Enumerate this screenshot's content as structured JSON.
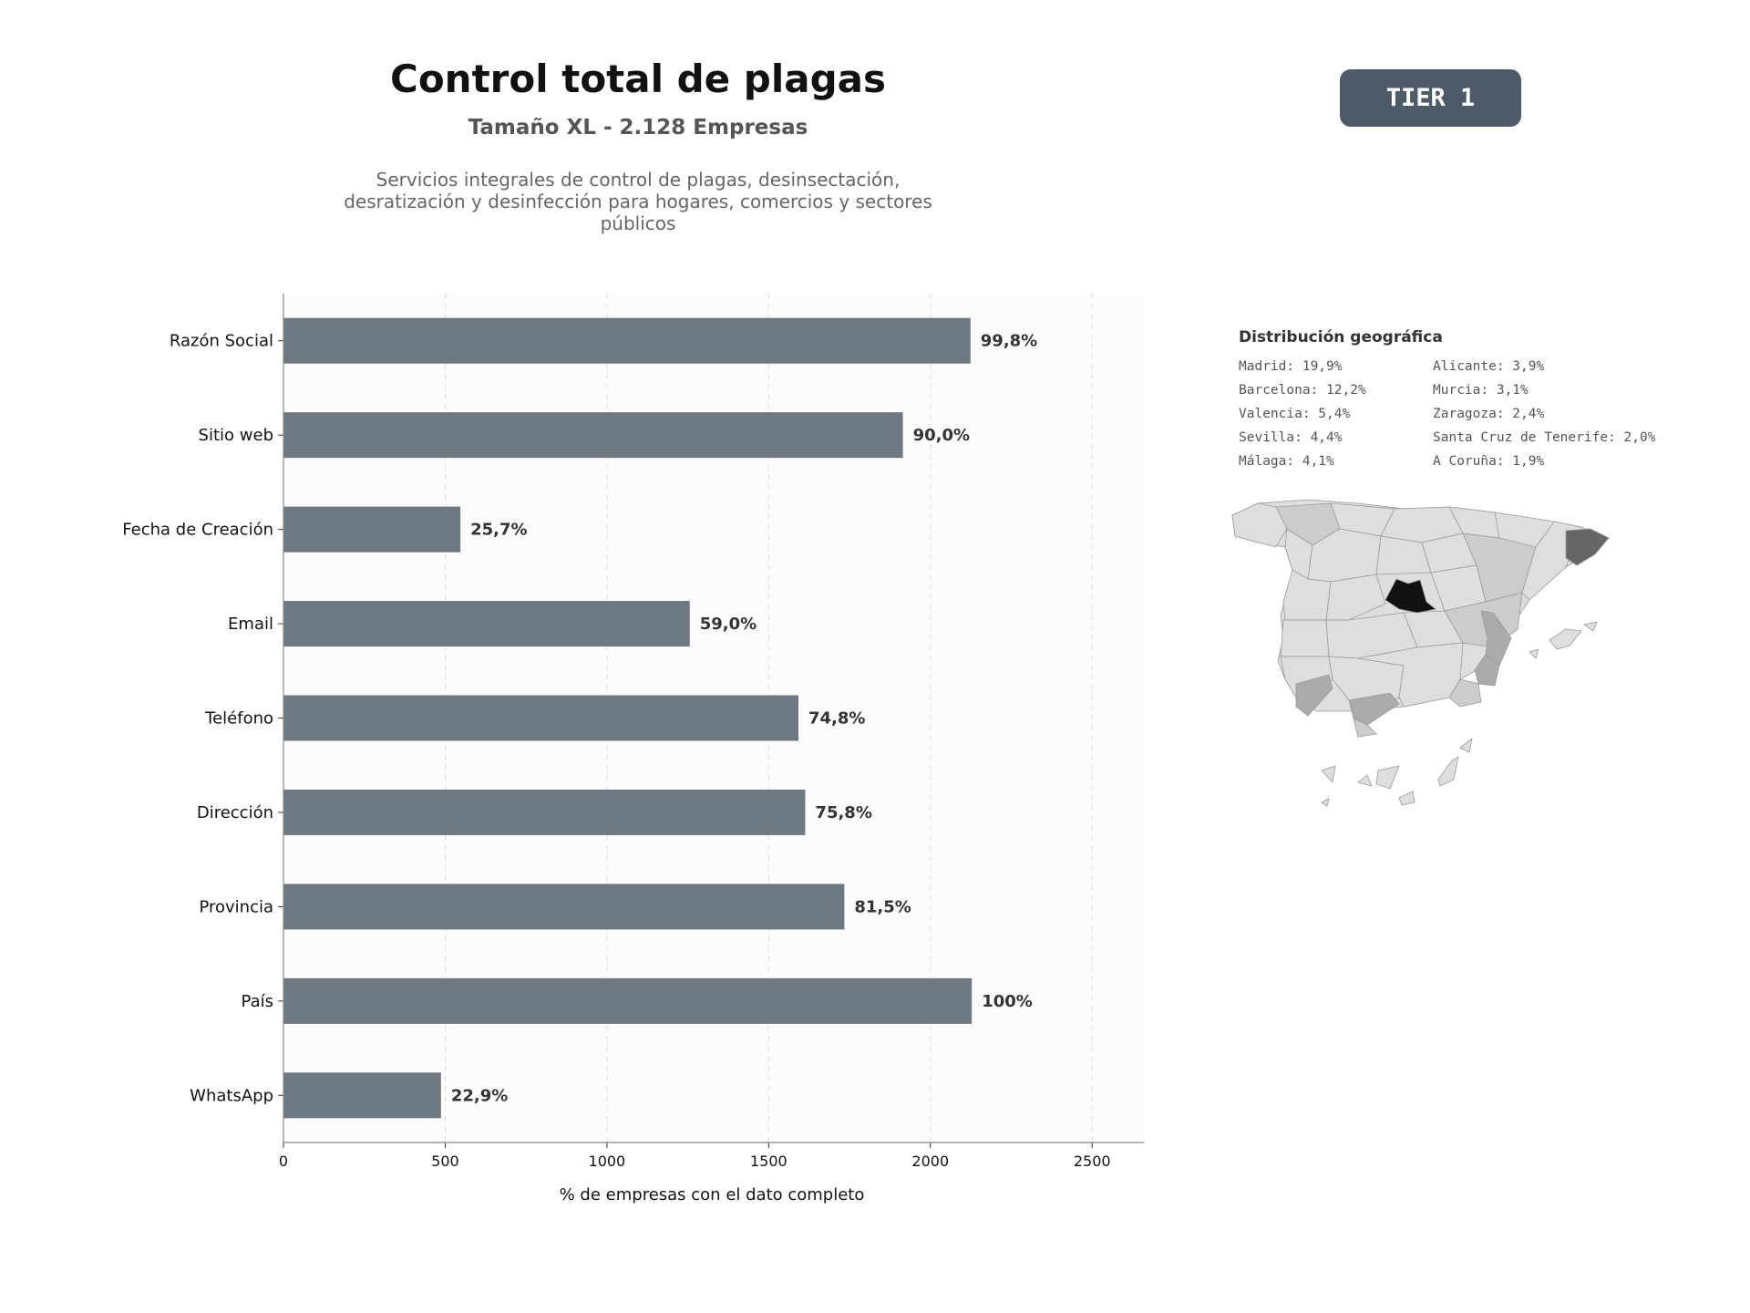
{
  "header": {
    "title": "Control total de plagas",
    "subtitle": "Tamaño XL - 2.128 Empresas",
    "description": "Servicios integrales de control de plagas, desinsectación, desratización y desinfección para hogares, comercios y sectores públicos"
  },
  "badge": {
    "label": "TIER 1",
    "color": "#4d5a67"
  },
  "chart_data": {
    "type": "bar",
    "orientation": "horizontal",
    "categories": [
      "Razón Social",
      "Sitio web",
      "Fecha de Creación",
      "Email",
      "Teléfono",
      "Dirección",
      "Provincia",
      "País",
      "WhatsApp"
    ],
    "values": [
      2124,
      1915,
      547,
      1256,
      1592,
      1613,
      1734,
      2128,
      487
    ],
    "data_labels": [
      "99,8%",
      "90,0%",
      "25,7%",
      "59,0%",
      "74,8%",
      "75,8%",
      "81,5%",
      "100%",
      "22,9%"
    ],
    "xlabel": "% de empresas con el dato completo",
    "xlim": [
      0,
      2660
    ],
    "xticks": [
      0,
      500,
      1000,
      1500,
      2000,
      2500
    ],
    "grid": "vertical-dashed",
    "bar_color": "#6e7881"
  },
  "geo": {
    "title": "Distribución geográfica",
    "items": [
      "Madrid: 19,9%",
      "Barcelona: 12,2%",
      "Valencia: 5,4%",
      "Sevilla: 4,4%",
      "Málaga: 4,1%",
      "Alicante: 3,9%",
      "Murcia: 3,1%",
      "Zaragoza: 2,4%",
      "Santa Cruz de Tenerife: 2,0%",
      "A Coruña: 1,9%"
    ],
    "map_colors": {
      "highest": "#111111",
      "high": "#666666",
      "medium": "#aaaaaa",
      "low": "#cccccc",
      "base": "#dedede",
      "border": "#9a9a9a"
    }
  }
}
